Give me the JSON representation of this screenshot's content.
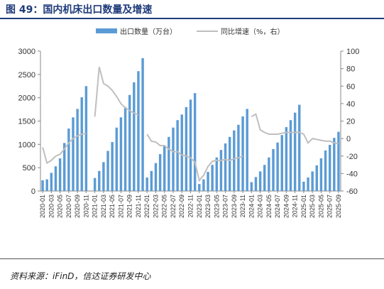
{
  "header": {
    "title": "图 49：国内机床出口数量及增速"
  },
  "footer": {
    "source": "资料来源：iFinD，信达证券研发中心"
  },
  "colors": {
    "bars": "#5b9bd5",
    "line": "#bfbfbf",
    "title": "#1f3b7a"
  },
  "chart_data": {
    "type": "bar",
    "title": "图 49：国内机床出口数量及增速",
    "legend_position": "top-center",
    "grid": false,
    "categories": [
      "2020-01",
      "2020-02",
      "2020-03",
      "2020-04",
      "2020-05",
      "2020-06",
      "2020-07",
      "2020-08",
      "2020-09",
      "2020-10",
      "2020-11",
      "2020-12",
      "2021-01",
      "2021-02",
      "2021-03",
      "2021-04",
      "2021-05",
      "2021-06",
      "2021-07",
      "2021-08",
      "2021-09",
      "2021-10",
      "2021-11",
      "2021-12",
      "2022-01",
      "2022-02",
      "2022-03",
      "2022-04",
      "2022-05",
      "2022-06",
      "2022-07",
      "2022-08",
      "2022-09",
      "2022-10",
      "2022-11",
      "2022-12",
      "2023-01",
      "2023-02",
      "2023-03",
      "2023-04",
      "2023-05",
      "2023-06",
      "2023-07",
      "2023-08",
      "2023-09",
      "2023-10",
      "2023-11",
      "2023-12",
      "2024-01",
      "2024-02",
      "2024-03",
      "2024-04",
      "2024-05",
      "2024-06",
      "2024-07",
      "2024-08",
      "2024-09",
      "2024-10",
      "2024-11",
      "2024-12",
      "2025-01",
      "2025-02",
      "2025-03",
      "2025-04",
      "2025-05",
      "2025-06",
      "2025-07",
      "2025-08",
      "2025-09"
    ],
    "tick_labels": [
      "2020-01",
      "2020-03",
      "2020-05",
      "2020-07",
      "2020-09",
      "2020-11",
      "2021-01",
      "2021-03",
      "2021-05",
      "2021-07",
      "2021-09",
      "2021-11",
      "2022-01",
      "2022-03",
      "2022-05",
      "2022-07",
      "2022-09",
      "2022-11",
      "2023-01",
      "2023-03",
      "2023-05",
      "2023-07",
      "2023-09",
      "2023-11",
      "2024-01",
      "2024-03",
      "2024-05",
      "2024-07",
      "2024-09",
      "2024-11",
      "2025-01",
      "2025-03",
      "2025-05",
      "2025-07",
      "2025-09"
    ],
    "series": [
      {
        "name": "出口数量（万台）",
        "type": "bar",
        "axis": "left",
        "values": [
          230,
          250,
          390,
          530,
          700,
          1030,
          1340,
          1580,
          1760,
          2010,
          2250,
          null,
          280,
          430,
          620,
          860,
          1050,
          1360,
          1580,
          1800,
          2060,
          2330,
          2570,
          2850,
          290,
          430,
          600,
          790,
          960,
          1160,
          1360,
          1520,
          1640,
          1800,
          1960,
          2100,
          150,
          250,
          410,
          560,
          720,
          880,
          1020,
          1160,
          1300,
          1420,
          1600,
          1760,
          190,
          300,
          420,
          560,
          720,
          900,
          1040,
          1200,
          1370,
          1520,
          1680,
          1850,
          200,
          290,
          420,
          550,
          700,
          870,
          990,
          1140,
          1270
        ]
      },
      {
        "name": "同比增速（%，右）",
        "type": "line",
        "axis": "right",
        "values": [
          -10,
          -28,
          -25,
          -20,
          -18,
          -12,
          -5,
          0,
          3,
          5,
          6,
          null,
          25,
          82,
          63,
          60,
          55,
          48,
          40,
          35,
          32,
          29,
          27,
          null,
          5,
          -3,
          -4,
          -8,
          -8,
          -12,
          -15,
          -15,
          -19,
          -20,
          -22,
          -27,
          -48,
          -42,
          -32,
          -26,
          -25,
          -25,
          -24,
          -25,
          -23,
          -22,
          -20,
          null,
          25,
          28,
          10,
          7,
          5,
          5,
          5,
          6,
          7,
          7,
          7,
          7,
          5,
          -5,
          0,
          -1,
          -2,
          -3,
          -3,
          -5,
          -6
        ]
      }
    ],
    "y_left": {
      "min": 0,
      "max": 3000,
      "ticks": [
        0,
        500,
        1000,
        1500,
        2000,
        2500,
        3000
      ]
    },
    "y_right": {
      "min": -60,
      "max": 100,
      "ticks": [
        -60,
        -40,
        -20,
        0,
        20,
        40,
        60,
        80,
        100
      ]
    }
  }
}
